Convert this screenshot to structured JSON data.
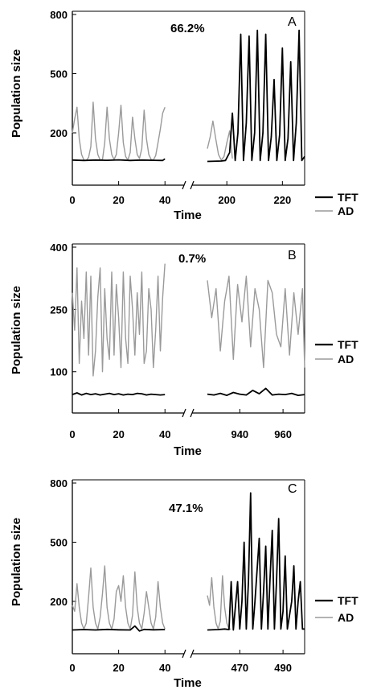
{
  "colors": {
    "TFT": "#000000",
    "AD": "#9a9a9a",
    "axis": "#000000",
    "background": "#ffffff"
  },
  "chart_data": [
    {
      "type": "line",
      "panel": "A",
      "annotation": "66.2%",
      "xlabel": "Time",
      "ylabel": "Population size",
      "yticks": [
        200,
        500,
        800
      ],
      "ylim": [
        0,
        800
      ],
      "broken_x_axis": true,
      "segments": [
        {
          "xlim": [
            0,
            42
          ],
          "xticks": [
            0,
            20,
            40
          ]
        },
        {
          "xlim": [
            193,
            228
          ],
          "xticks": [
            200,
            220
          ]
        }
      ],
      "series": [
        {
          "name": "TFT",
          "segments": [
            {
              "x": [
                0,
                5,
                10,
                15,
                20,
                25,
                30,
                35,
                39,
                40
              ],
              "y": [
                62,
                60,
                62,
                61,
                63,
                60,
                62,
                61,
                60,
                68
              ]
            },
            {
              "x": [
                193,
                198,
                199.5,
                201,
                202,
                203,
                204,
                205,
                206,
                207,
                208,
                209,
                210,
                211,
                212,
                213,
                214,
                215,
                216,
                217,
                218,
                219,
                220,
                221,
                222,
                223,
                224,
                225,
                226,
                227,
                228
              ],
              "y": [
                55,
                57,
                60,
                100,
                300,
                60,
                200,
                700,
                60,
                250,
                690,
                60,
                200,
                720,
                60,
                200,
                700,
                60,
                180,
                470,
                60,
                190,
                630,
                60,
                170,
                560,
                60,
                250,
                720,
                60,
                80
              ]
            }
          ]
        },
        {
          "name": "AD",
          "segments": [
            {
              "x": [
                0,
                1,
                2,
                3,
                4,
                5,
                6,
                7,
                8,
                9,
                10,
                11,
                12,
                13,
                14,
                15,
                16,
                17,
                18,
                19,
                20,
                21,
                22,
                23,
                24,
                25,
                26,
                27,
                28,
                29,
                30,
                31,
                32,
                33,
                34,
                35,
                36,
                37,
                38,
                39,
                40
              ],
              "y": [
                200,
                270,
                330,
                170,
                90,
                62,
                60,
                75,
                130,
                355,
                170,
                90,
                62,
                65,
                150,
                330,
                170,
                90,
                65,
                90,
                200,
                340,
                150,
                80,
                62,
                100,
                280,
                170,
                90,
                70,
                120,
                315,
                170,
                90,
                65,
                62,
                85,
                150,
                220,
                300,
                330
              ]
            },
            {
              "x": [
                193,
                194,
                195,
                196,
                197,
                198,
                199,
                200,
                201,
                202
              ],
              "y": [
                120,
                180,
                260,
                170,
                90,
                62,
                80,
                150,
                210,
                70
              ]
            }
          ]
        }
      ]
    },
    {
      "type": "line",
      "panel": "B",
      "annotation": "0.7%",
      "xlabel": "Time",
      "ylabel": "Population size",
      "yticks": [
        100,
        250,
        400
      ],
      "ylim": [
        20,
        400
      ],
      "broken_x_axis": true,
      "segments": [
        {
          "xlim": [
            0,
            42
          ],
          "xticks": [
            0,
            20,
            40
          ]
        },
        {
          "xlim": [
            925,
            970
          ],
          "xticks": [
            940,
            960
          ]
        }
      ],
      "series": [
        {
          "name": "TFT",
          "segments": [
            {
              "x": [
                0,
                2,
                4,
                6,
                8,
                10,
                12,
                14,
                16,
                18,
                20,
                22,
                24,
                26,
                28,
                30,
                32,
                34,
                36,
                38,
                40
              ],
              "y": [
                45,
                49,
                44,
                48,
                45,
                47,
                44,
                46,
                48,
                45,
                47,
                44,
                46,
                45,
                48,
                47,
                44,
                46,
                45,
                44,
                45
              ]
            },
            {
              "x": [
                925,
                928,
                931,
                934,
                937,
                940,
                943,
                946,
                949,
                952,
                955,
                958,
                961,
                964,
                967,
                970
              ],
              "y": [
                46,
                44,
                48,
                43,
                50,
                46,
                44,
                55,
                47,
                60,
                44,
                46,
                45,
                48,
                43,
                45
              ]
            }
          ]
        },
        {
          "name": "AD",
          "segments": [
            {
              "x": [
                0,
                1,
                2,
                3,
                4,
                5,
                6,
                7,
                8,
                9,
                10,
                11,
                12,
                13,
                14,
                15,
                16,
                17,
                18,
                19,
                20,
                21,
                22,
                23,
                24,
                25,
                26,
                27,
                28,
                29,
                30,
                31,
                32,
                33,
                34,
                35,
                36,
                37,
                38,
                39,
                40
              ],
              "y": [
                290,
                200,
                350,
                120,
                270,
                180,
                340,
                140,
                330,
                90,
                150,
                280,
                350,
                100,
                300,
                180,
                130,
                340,
                140,
                310,
                230,
                110,
                340,
                180,
                120,
                330,
                250,
                140,
                290,
                190,
                340,
                120,
                150,
                300,
                250,
                110,
                200,
                330,
                150,
                280,
                360
              ]
            },
            {
              "x": [
                925,
                927,
                929,
                931,
                933,
                935,
                937,
                939,
                941,
                943,
                945,
                947,
                949,
                951,
                953,
                955,
                957,
                959,
                961,
                963,
                965,
                967,
                969,
                970
              ],
              "y": [
                320,
                230,
                300,
                150,
                270,
                330,
                130,
                310,
                220,
                330,
                160,
                300,
                250,
                110,
                320,
                290,
                190,
                160,
                300,
                140,
                290,
                190,
                300,
                110
              ]
            }
          ]
        }
      ]
    },
    {
      "type": "line",
      "panel": "C",
      "annotation": "47.1%",
      "xlabel": "Time",
      "ylabel": "Population size",
      "yticks": [
        200,
        500,
        800
      ],
      "ylim": [
        0,
        800
      ],
      "broken_x_axis": true,
      "segments": [
        {
          "xlim": [
            0,
            42
          ],
          "xticks": [
            0,
            20,
            40
          ]
        },
        {
          "xlim": [
            455,
            500
          ],
          "xticks": [
            470,
            490
          ]
        }
      ],
      "series": [
        {
          "name": "TFT",
          "segments": [
            {
              "x": [
                0,
                5,
                10,
                15,
                20,
                25,
                27,
                29,
                31,
                35,
                40
              ],
              "y": [
                55,
                57,
                55,
                58,
                56,
                55,
                75,
                50,
                58,
                56,
                57
              ]
            },
            {
              "x": [
                455,
                460,
                463,
                465,
                466,
                467,
                469,
                470,
                471,
                472,
                473,
                474,
                475,
                476,
                477,
                479,
                480,
                481,
                482,
                483,
                484,
                485,
                486,
                487,
                488,
                489,
                490,
                491,
                492,
                494,
                495,
                496,
                497,
                498,
                499,
                500
              ],
              "y": [
                55,
                57,
                60,
                57,
                300,
                55,
                300,
                60,
                200,
                500,
                60,
                300,
                750,
                60,
                200,
                520,
                60,
                250,
                480,
                60,
                320,
                560,
                60,
                300,
                620,
                60,
                150,
                430,
                60,
                200,
                380,
                60,
                200,
                300,
                60,
                60
              ]
            }
          ]
        },
        {
          "name": "AD",
          "segments": [
            {
              "x": [
                0,
                1,
                2,
                3,
                4,
                5,
                6,
                7,
                8,
                9,
                10,
                11,
                12,
                13,
                14,
                15,
                16,
                17,
                18,
                19,
                20,
                21,
                22,
                23,
                24,
                25,
                26,
                27,
                28,
                29,
                30,
                31,
                32,
                33,
                34,
                35,
                36,
                37,
                38,
                39,
                40
              ],
              "y": [
                180,
                150,
                290,
                170,
                90,
                60,
                90,
                220,
                370,
                170,
                90,
                60,
                120,
                240,
                380,
                170,
                90,
                60,
                110,
                250,
                280,
                200,
                330,
                170,
                90,
                60,
                130,
                350,
                170,
                90,
                60,
                140,
                250,
                170,
                90,
                60,
                120,
                300,
                170,
                90,
                60
              ]
            },
            {
              "x": [
                455,
                456,
                457,
                458,
                459,
                460,
                461,
                462,
                463,
                464,
                465,
                466
              ],
              "y": [
                230,
                180,
                320,
                170,
                90,
                60,
                100,
                330,
                170,
                90,
                60,
                60
              ]
            }
          ]
        }
      ]
    }
  ],
  "legend": {
    "entries": [
      "TFT",
      "AD"
    ],
    "placement": "right"
  }
}
